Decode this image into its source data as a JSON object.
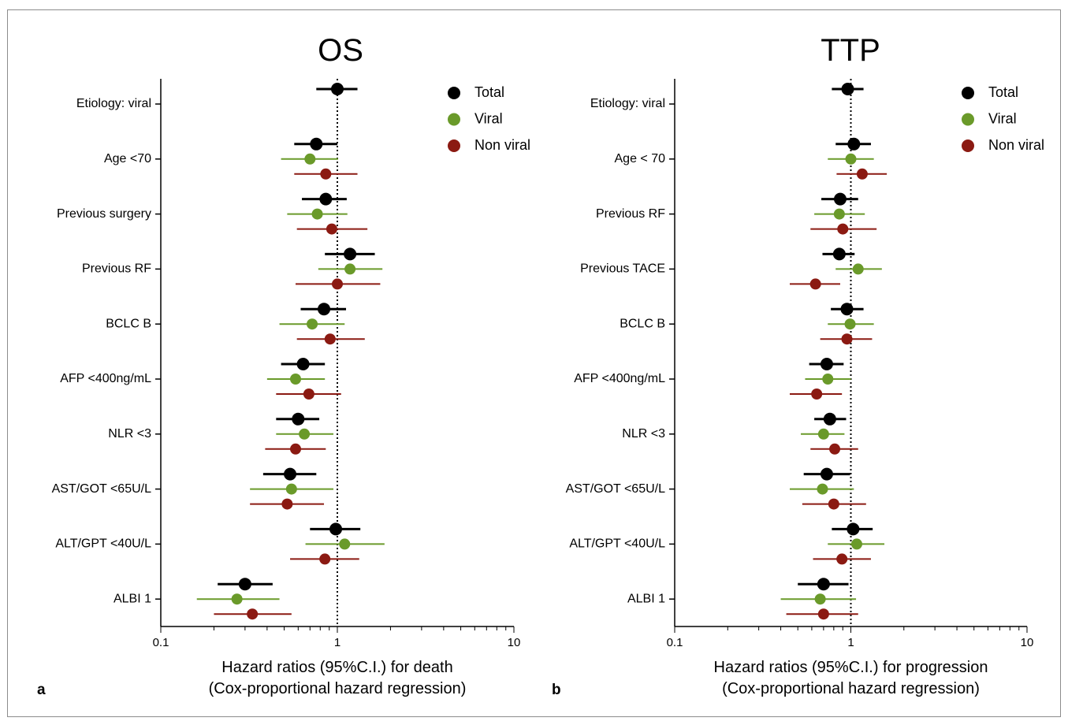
{
  "chart_data": [
    {
      "type": "forest",
      "panel_label": "a",
      "title": "OS",
      "xlabel": [
        "Hazard ratios (95%C.I.) for death",
        "(Cox-proportional hazard regression)"
      ],
      "xscale": "log",
      "xlim": [
        0.1,
        10
      ],
      "xticks": [
        "0.1",
        "1",
        "10"
      ],
      "reference_line": 1,
      "legend": {
        "position": "top-right",
        "entries": [
          "Total",
          "Viral",
          "Non viral"
        ]
      },
      "categories": [
        "Etiology: viral",
        "Age <70",
        "Previous surgery",
        "Previous RF",
        "BCLC B",
        "AFP <400ng/mL",
        "NLR <3",
        "AST/GOT <65U/L",
        "ALT/GPT <40U/L",
        "ALBI 1"
      ],
      "series": [
        {
          "name": "Total",
          "color": "#000000",
          "hr": [
            1.0,
            0.76,
            0.86,
            1.18,
            0.84,
            0.64,
            0.6,
            0.54,
            0.98,
            0.3
          ],
          "lo": [
            0.76,
            0.57,
            0.63,
            0.85,
            0.62,
            0.48,
            0.45,
            0.38,
            0.7,
            0.21
          ],
          "hi": [
            1.3,
            1.0,
            1.13,
            1.63,
            1.12,
            0.85,
            0.79,
            0.76,
            1.35,
            0.43
          ]
        },
        {
          "name": "Viral",
          "color": "#6a9a2a",
          "hr": [
            null,
            0.7,
            0.77,
            1.18,
            0.72,
            0.58,
            0.65,
            0.55,
            1.1,
            0.27
          ],
          "lo": [
            null,
            0.48,
            0.52,
            0.78,
            0.47,
            0.4,
            0.45,
            0.32,
            0.66,
            0.16
          ],
          "hi": [
            null,
            1.01,
            1.14,
            1.8,
            1.1,
            0.85,
            0.95,
            0.95,
            1.85,
            0.47
          ]
        },
        {
          "name": "Non viral",
          "color": "#8b1a12",
          "hr": [
            null,
            0.86,
            0.93,
            1.0,
            0.91,
            0.69,
            0.58,
            0.52,
            0.85,
            0.33
          ],
          "lo": [
            null,
            0.57,
            0.59,
            0.58,
            0.59,
            0.45,
            0.39,
            0.32,
            0.54,
            0.2
          ],
          "hi": [
            null,
            1.3,
            1.48,
            1.75,
            1.43,
            1.05,
            0.86,
            0.84,
            1.33,
            0.55
          ]
        }
      ]
    },
    {
      "type": "forest",
      "panel_label": "b",
      "title": "TTP",
      "xlabel": [
        "Hazard ratios (95%C.I.) for progression",
        "(Cox-proportional hazard regression)"
      ],
      "xscale": "log",
      "xlim": [
        0.1,
        10
      ],
      "xticks": [
        "0.1",
        "1",
        "10"
      ],
      "reference_line": 1,
      "legend": {
        "position": "top-right",
        "entries": [
          "Total",
          "Viral",
          "Non viral"
        ]
      },
      "categories": [
        "Etiology: viral",
        "Age < 70",
        "Previous RF",
        "Previous TACE",
        "BCLC B",
        "AFP <400ng/mL",
        "NLR <3",
        "AST/GOT <65U/L",
        "ALT/GPT <40U/L",
        "ALBI 1"
      ],
      "series": [
        {
          "name": "Total",
          "color": "#000000",
          "hr": [
            0.96,
            1.04,
            0.87,
            0.86,
            0.95,
            0.73,
            0.76,
            0.73,
            1.03,
            0.7
          ],
          "lo": [
            0.78,
            0.82,
            0.68,
            0.69,
            0.77,
            0.58,
            0.62,
            0.54,
            0.78,
            0.5
          ],
          "hi": [
            1.18,
            1.3,
            1.1,
            1.05,
            1.18,
            0.91,
            0.94,
            0.99,
            1.33,
            0.97
          ]
        },
        {
          "name": "Viral",
          "color": "#6a9a2a",
          "hr": [
            null,
            1.0,
            0.86,
            1.1,
            0.99,
            0.74,
            0.7,
            0.69,
            1.08,
            0.67
          ],
          "lo": [
            null,
            0.74,
            0.62,
            0.82,
            0.74,
            0.55,
            0.52,
            0.45,
            0.74,
            0.4
          ],
          "hi": [
            null,
            1.35,
            1.2,
            1.5,
            1.35,
            1.0,
            0.92,
            1.04,
            1.55,
            1.07
          ]
        },
        {
          "name": "Non viral",
          "color": "#8b1a12",
          "hr": [
            null,
            1.16,
            0.9,
            0.63,
            0.95,
            0.64,
            0.81,
            0.8,
            0.89,
            0.7
          ],
          "lo": [
            null,
            0.83,
            0.59,
            0.45,
            0.67,
            0.45,
            0.59,
            0.53,
            0.61,
            0.43
          ],
          "hi": [
            null,
            1.6,
            1.4,
            0.87,
            1.32,
            0.89,
            1.1,
            1.22,
            1.3,
            1.1
          ]
        }
      ]
    }
  ]
}
